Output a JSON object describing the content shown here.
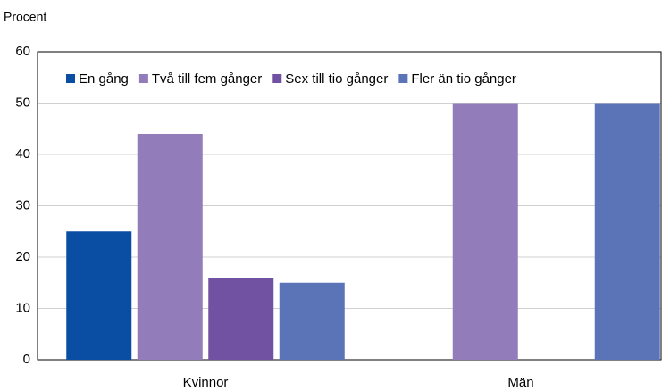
{
  "chart_data": {
    "type": "bar",
    "ylabel": "Procent",
    "categories": [
      "Kvinnor",
      "Män"
    ],
    "series": [
      {
        "name": "En gång",
        "color": "#0a4ea3",
        "values": [
          25,
          0
        ]
      },
      {
        "name": "Två till fem gånger",
        "color": "#927cb9",
        "values": [
          44,
          50
        ]
      },
      {
        "name": "Sex till tio gånger",
        "color": "#7152a2",
        "values": [
          16,
          0
        ]
      },
      {
        "name": "Fler än tio gånger",
        "color": "#5b73b7",
        "values": [
          15,
          50
        ]
      }
    ],
    "ylim": [
      0,
      60
    ],
    "yticks": [
      0,
      10,
      20,
      30,
      40,
      50,
      60
    ],
    "grid": true,
    "legend": "top"
  }
}
